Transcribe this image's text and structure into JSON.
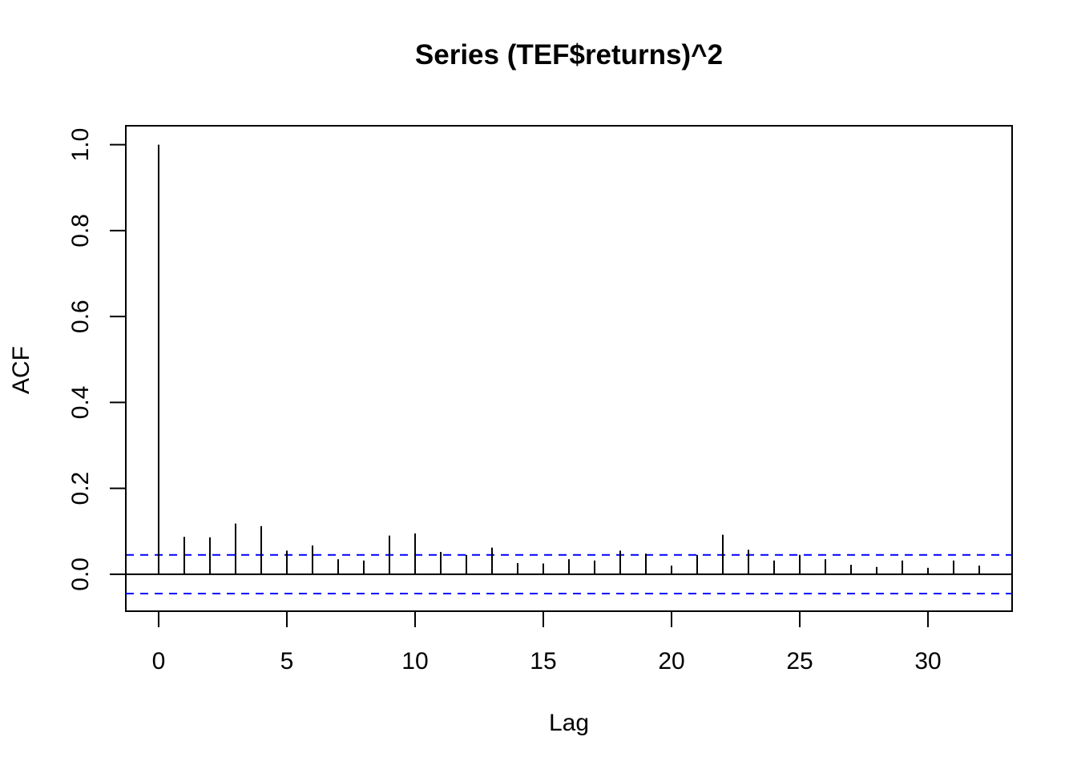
{
  "chart_data": {
    "type": "bar",
    "title": "Series  (TEF$returns)^2",
    "xlabel": "Lag",
    "ylabel": "ACF",
    "xlim": [
      -1.28,
      33.28
    ],
    "ylim": [
      -0.086,
      1.044
    ],
    "x_ticks": [
      0,
      5,
      10,
      15,
      20,
      25,
      30
    ],
    "x_tick_labels": [
      "0",
      "5",
      "10",
      "15",
      "20",
      "25",
      "30"
    ],
    "y_ticks": [
      0.0,
      0.2,
      0.4,
      0.6,
      0.8,
      1.0
    ],
    "y_tick_labels": [
      "0.0",
      "0.2",
      "0.4",
      "0.6",
      "0.8",
      "1.0"
    ],
    "lags": [
      0,
      1,
      2,
      3,
      4,
      5,
      6,
      7,
      8,
      9,
      10,
      11,
      12,
      13,
      14,
      15,
      16,
      17,
      18,
      19,
      20,
      21,
      22,
      23,
      24,
      25,
      26,
      27,
      28,
      29,
      30,
      31,
      32
    ],
    "values": [
      1.0,
      0.087,
      0.086,
      0.118,
      0.112,
      0.055,
      0.067,
      0.035,
      0.032,
      0.09,
      0.095,
      0.052,
      0.045,
      0.062,
      0.026,
      0.025,
      0.035,
      0.032,
      0.055,
      0.048,
      0.02,
      0.045,
      0.092,
      0.057,
      0.032,
      0.045,
      0.035,
      0.022,
      0.017,
      0.032,
      0.015,
      0.032,
      0.02
    ],
    "confidence_bound": 0.045,
    "bar_color": "#000000",
    "confidence_color": "#0000ff",
    "zero_line_color": "#000000",
    "grid": false,
    "legend": "none"
  }
}
